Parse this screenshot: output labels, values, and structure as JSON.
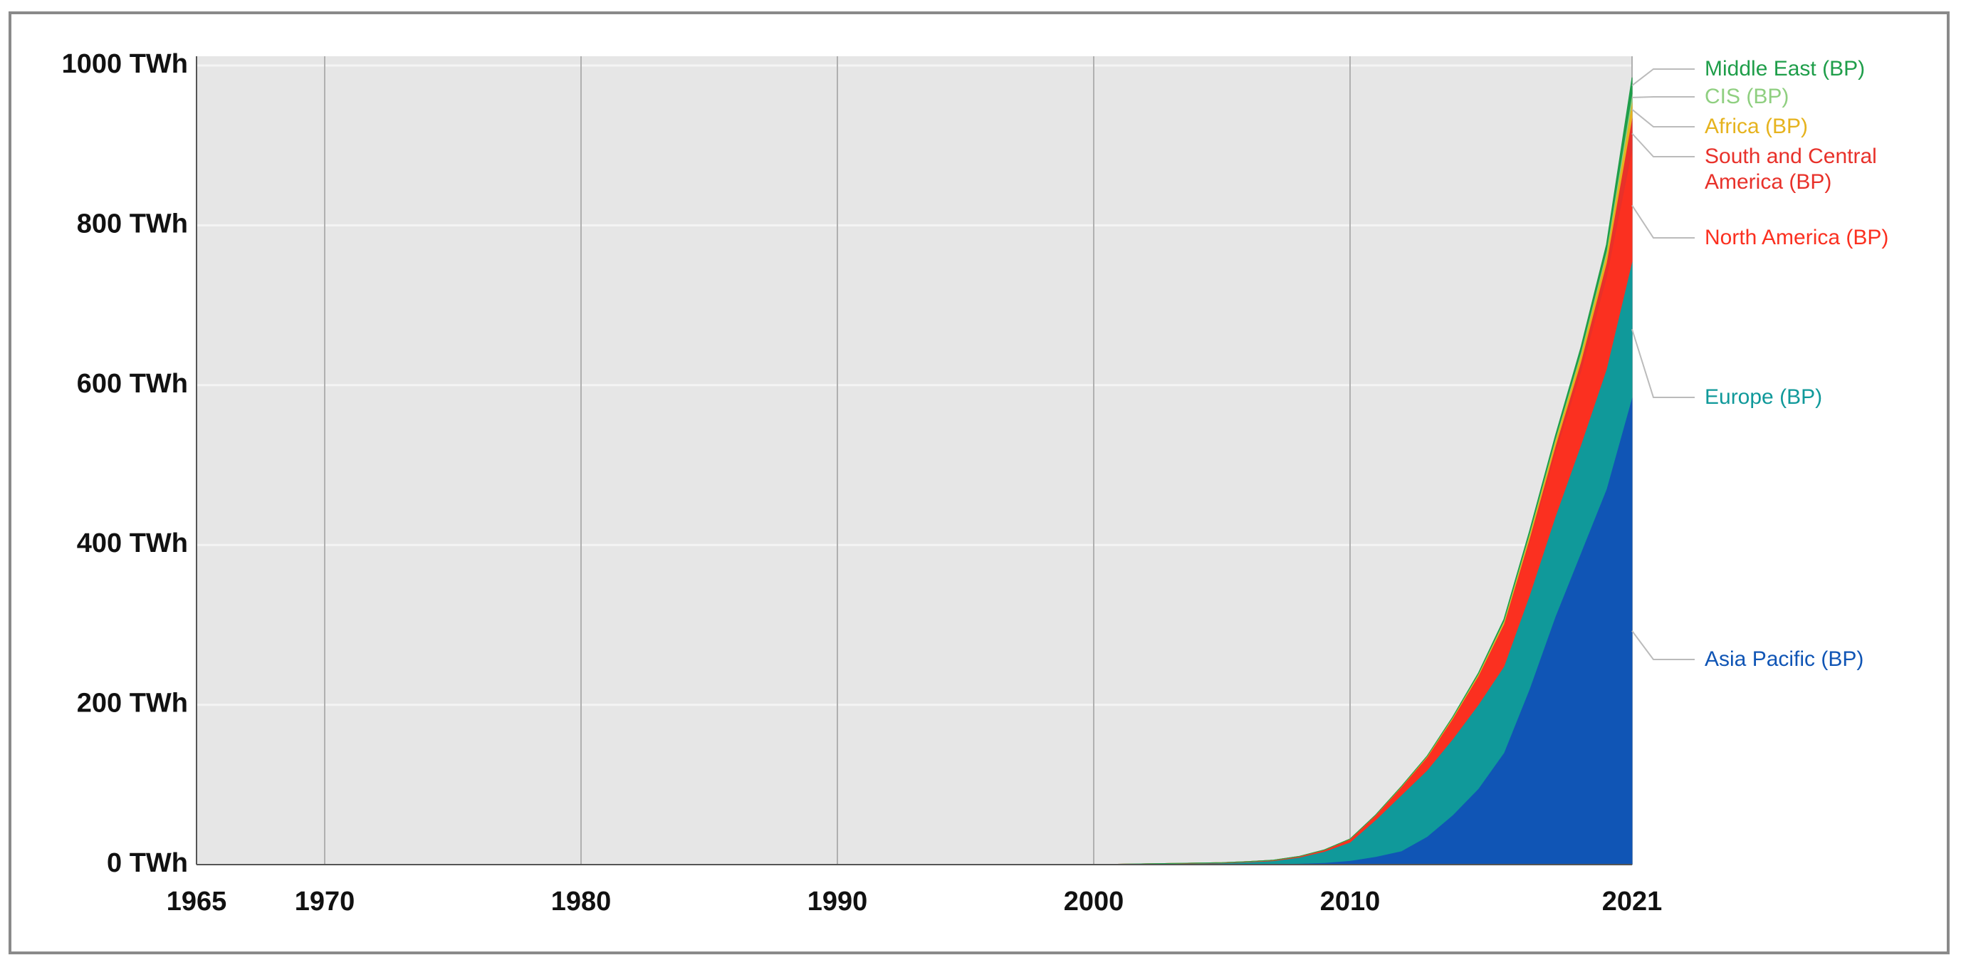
{
  "chart_data": {
    "type": "stacked-area",
    "x": [
      1965,
      2000,
      2005,
      2006,
      2007,
      2008,
      2009,
      2010,
      2011,
      2012,
      2013,
      2014,
      2015,
      2016,
      2017,
      2018,
      2019,
      2020,
      2021
    ],
    "xlim": [
      1965,
      2021
    ],
    "xticks": [
      1965,
      1970,
      1980,
      1990,
      2000,
      2010,
      2021
    ],
    "ylim": [
      0,
      1000
    ],
    "yticks": [
      {
        "value": 0,
        "label": "0 TWh"
      },
      {
        "value": 200,
        "label": "200 TWh"
      },
      {
        "value": 400,
        "label": "400 TWh"
      },
      {
        "value": 600,
        "label": "600 TWh"
      },
      {
        "value": 800,
        "label": "800 TWh"
      },
      {
        "value": 1000,
        "label": "1000 TWh"
      }
    ],
    "grid": true,
    "series": [
      {
        "name": "Asia Pacific (BP)",
        "color": "#1055b5",
        "values": [
          0,
          0,
          0.5,
          0.7,
          1,
          1.5,
          2.5,
          5,
          10,
          17,
          35,
          62,
          95,
          140,
          220,
          310,
          390,
          470,
          585
        ]
      },
      {
        "name": "Europe (BP)",
        "color": "#10999a",
        "values": [
          0,
          0,
          1.5,
          2.5,
          3.8,
          7.5,
          14,
          23,
          46,
          70,
          83,
          95,
          105,
          108,
          117,
          125,
          135,
          150,
          170
        ]
      },
      {
        "name": "North America (BP)",
        "color": "#fb3020",
        "values": [
          0,
          0,
          0.5,
          0.6,
          0.8,
          1.2,
          2,
          4,
          6,
          10,
          16,
          25,
          35,
          51,
          67,
          80,
          92,
          115,
          140
        ]
      },
      {
        "name": "South and Central America (BP)",
        "color": "#e8312a",
        "values": [
          0,
          0,
          0,
          0,
          0,
          0,
          0,
          0,
          0,
          0.2,
          0.4,
          0.6,
          1,
          2,
          4,
          8,
          12,
          18,
          40
        ]
      },
      {
        "name": "Africa (BP)",
        "color": "#e6b31e",
        "values": [
          0,
          0,
          0,
          0,
          0,
          0,
          0,
          0.1,
          0.3,
          0.6,
          1,
          1.5,
          2,
          3,
          5,
          7,
          9,
          11,
          20
        ]
      },
      {
        "name": "CIS (BP)",
        "color": "#8fcf80",
        "values": [
          0,
          0,
          0,
          0,
          0,
          0,
          0,
          0,
          0,
          0,
          0.1,
          0.2,
          0.5,
          1,
          1.5,
          2,
          3,
          4,
          10
        ]
      },
      {
        "name": "Middle East (BP)",
        "color": "#1f9e4a",
        "values": [
          0,
          0,
          0,
          0,
          0,
          0,
          0,
          0,
          0,
          0.1,
          0.2,
          0.4,
          1,
          2,
          3,
          4,
          6,
          8,
          20
        ]
      }
    ]
  }
}
